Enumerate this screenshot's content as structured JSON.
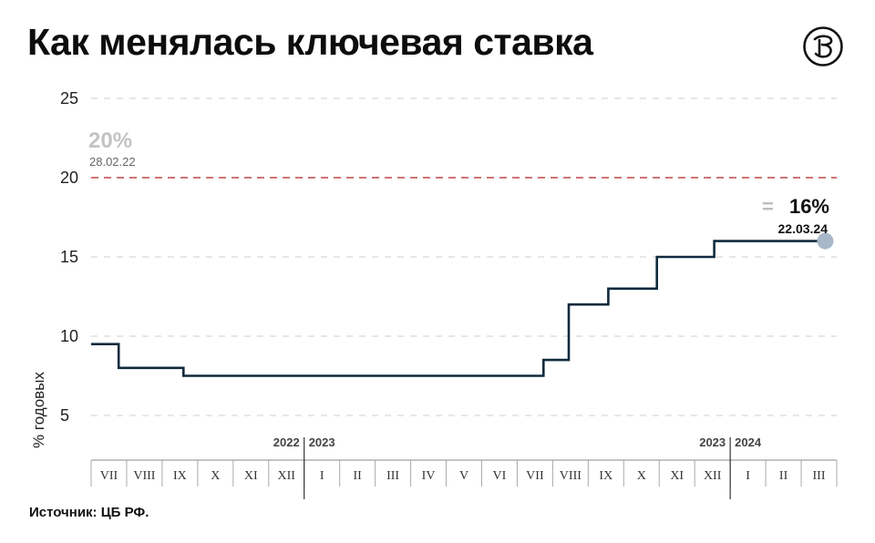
{
  "header": {
    "title": "Как менялась ключевая ставка"
  },
  "footer": {
    "source": "Источник: ЦБ РФ."
  },
  "brand": {
    "logo_icon": "vedomosti-logo-icon",
    "line_color": "#0f2a3d",
    "ref_color": "#b22222",
    "marker_color": "#a8b8c8"
  },
  "chart_data": {
    "type": "line",
    "step": true,
    "title": "Как менялась ключевая ставка",
    "ylabel": "% годовых",
    "xlabel": "",
    "ylim": [
      5,
      25
    ],
    "yticks": [
      5,
      10,
      15,
      20,
      25
    ],
    "grid": true,
    "months": [
      {
        "label": "VII"
      },
      {
        "label": "VIII"
      },
      {
        "label": "IX"
      },
      {
        "label": "X"
      },
      {
        "label": "XI"
      },
      {
        "label": "XII"
      },
      {
        "label": "I"
      },
      {
        "label": "II"
      },
      {
        "label": "III"
      },
      {
        "label": "IV"
      },
      {
        "label": "V"
      },
      {
        "label": "VI"
      },
      {
        "label": "VII"
      },
      {
        "label": "VIII"
      },
      {
        "label": "IX"
      },
      {
        "label": "X"
      },
      {
        "label": "XI"
      },
      {
        "label": "XII"
      },
      {
        "label": "I"
      },
      {
        "label": "II"
      },
      {
        "label": "III"
      }
    ],
    "years": [
      {
        "label": "2022",
        "side": "left",
        "boundary": 6
      },
      {
        "label": "2023",
        "side": "right",
        "boundary": 6
      },
      {
        "label": "2023",
        "side": "left",
        "boundary": 18
      },
      {
        "label": "2024",
        "side": "right",
        "boundary": 18
      }
    ],
    "series": [
      {
        "values": [
          {
            "x": "2022-07-01",
            "y": 9.5
          },
          {
            "x": "2022-07-25",
            "y": 8
          },
          {
            "x": "2022-09-19",
            "y": 7.5
          },
          {
            "x": "2023-07-24",
            "y": 8.5
          },
          {
            "x": "2023-08-15",
            "y": 12
          },
          {
            "x": "2023-09-18",
            "y": 13
          },
          {
            "x": "2023-10-30",
            "y": 15
          },
          {
            "x": "2023-12-18",
            "y": 16
          },
          {
            "x": "2024-03-22",
            "y": 16
          }
        ]
      }
    ],
    "reference_line": {
      "y": 20
    },
    "annotations": [
      {
        "value": "20%",
        "date": "28.02.22"
      },
      {
        "value": "16%",
        "date": "22.03.24",
        "symbol": "="
      }
    ]
  }
}
